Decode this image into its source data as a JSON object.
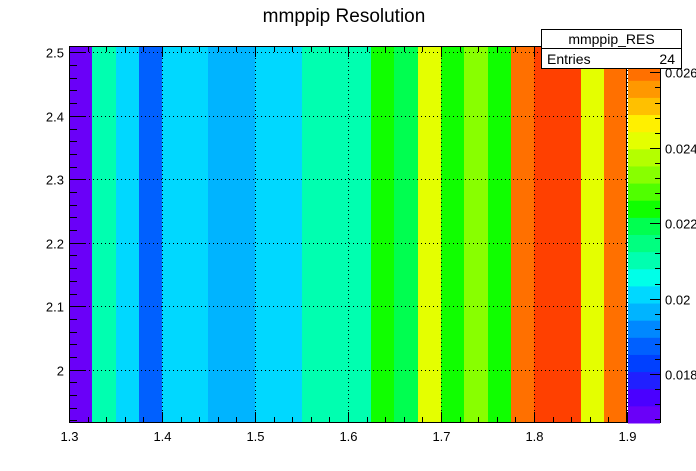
{
  "chart_data": {
    "type": "heatmap",
    "title": "mmppip Resolution",
    "xlabel": "",
    "ylabel": "",
    "xlim": [
      1.3,
      1.9
    ],
    "ylim": [
      1.916,
      2.51
    ],
    "x_ticks": [
      "1.3",
      "1.4",
      "1.5",
      "1.6",
      "1.7",
      "1.8",
      "1.9"
    ],
    "y_ticks": [
      "2",
      "2.1",
      "2.2",
      "2.3",
      "2.4",
      "2.5"
    ],
    "z_ticks": [
      "0.018",
      "0.02",
      "0.022",
      "0.024",
      "0.026"
    ],
    "zlim": [
      0.0167,
      0.0267
    ],
    "grid": true,
    "x_bin_edges": [
      1.3,
      1.325,
      1.35,
      1.375,
      1.4,
      1.45,
      1.5,
      1.55,
      1.6,
      1.625,
      1.65,
      1.675,
      1.7,
      1.725,
      1.75,
      1.775,
      1.8,
      1.85,
      1.875,
      1.9
    ],
    "values": [
      0.01675,
      0.0211,
      0.0201,
      0.0188,
      0.0201,
      0.0195,
      0.0201,
      0.0211,
      0.0211,
      0.0226,
      0.0219,
      0.0241,
      0.0226,
      0.0234,
      0.0226,
      0.0262,
      0.0266,
      0.0241,
      0.0258
    ],
    "colorbar": [
      "#6a00f8",
      "#4a00ff",
      "#2020ff",
      "#0040ff",
      "#0060ff",
      "#0088ff",
      "#00b4ff",
      "#00d8ff",
      "#00ffe8",
      "#00ffb0",
      "#00ff80",
      "#00ff50",
      "#10ff00",
      "#50ff00",
      "#88ff00",
      "#b4ff00",
      "#e4ff00",
      "#fff000",
      "#ffc000",
      "#ff9800",
      "#ff7000",
      "#ff4000"
    ],
    "stats": {
      "name": "mmppip_RES",
      "entries_label": "Entries",
      "entries_value": "24"
    }
  }
}
